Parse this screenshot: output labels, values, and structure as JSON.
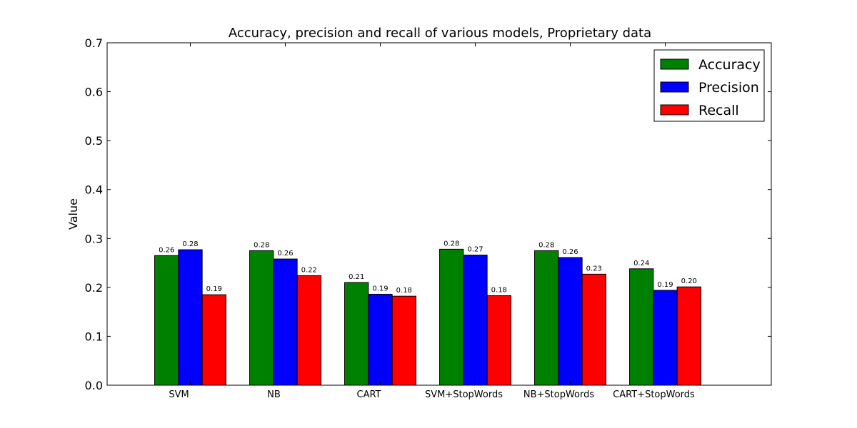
{
  "chart_data": {
    "type": "bar",
    "title": "Accuracy, precision and recall of various models, Proprietary data",
    "xlabel": "",
    "ylabel": "Value",
    "ylim": [
      0,
      0.7
    ],
    "yticks": [
      "0.0",
      "0.1",
      "0.2",
      "0.3",
      "0.4",
      "0.5",
      "0.6",
      "0.7"
    ],
    "categories": [
      "SVM",
      "NB",
      "CART",
      "SVM+StopWords",
      "NB+StopWords",
      "CART+StopWords"
    ],
    "series": [
      {
        "name": "Accuracy",
        "color": "#008000",
        "values": [
          0.265,
          0.275,
          0.21,
          0.278,
          0.275,
          0.238
        ],
        "labels": [
          "0.26",
          "0.28",
          "0.21",
          "0.28",
          "0.28",
          "0.24"
        ]
      },
      {
        "name": "Precision",
        "color": "#0000ff",
        "values": [
          0.277,
          0.258,
          0.186,
          0.266,
          0.261,
          0.194
        ],
        "labels": [
          "0.28",
          "0.26",
          "0.19",
          "0.27",
          "0.26",
          "0.19"
        ]
      },
      {
        "name": "Recall",
        "color": "#ff0000",
        "values": [
          0.185,
          0.224,
          0.182,
          0.183,
          0.227,
          0.201
        ],
        "labels": [
          "0.19",
          "0.22",
          "0.18",
          "0.18",
          "0.23",
          "0.20"
        ]
      }
    ],
    "grid": false,
    "legend_position": "top-right"
  }
}
